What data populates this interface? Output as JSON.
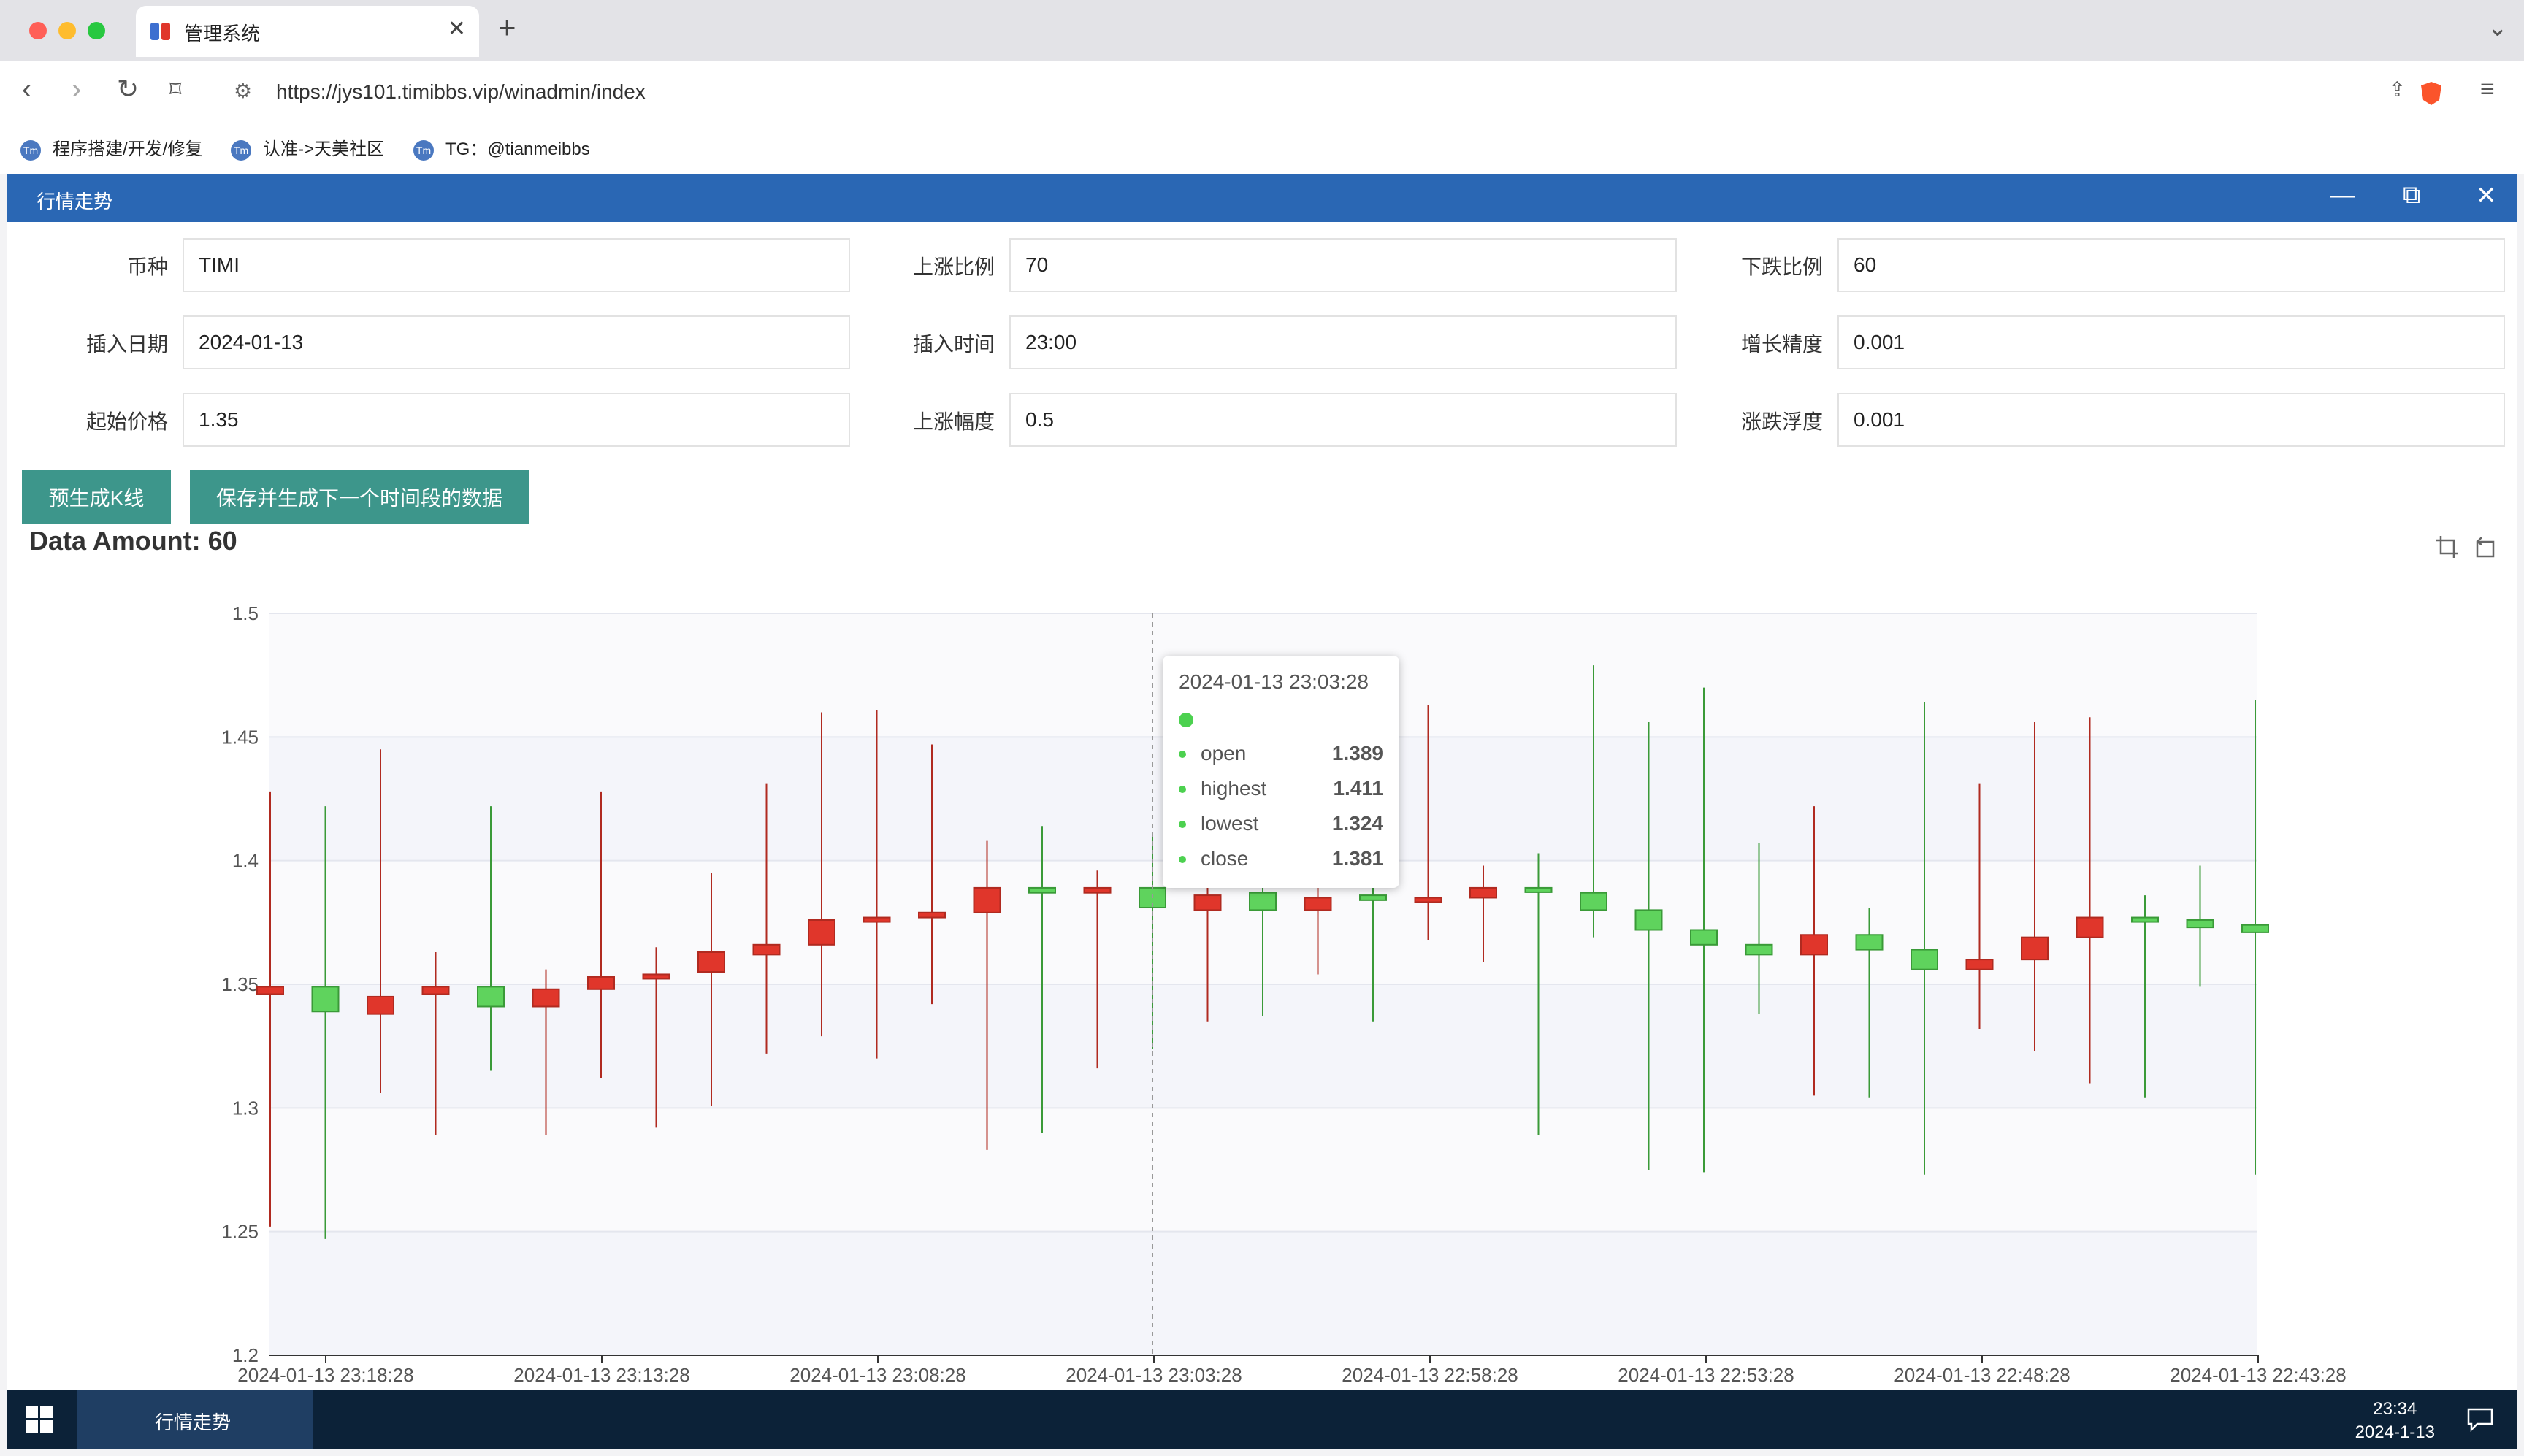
{
  "browser": {
    "tab_title": "管理系统",
    "url": "https://jys101.timibbs.vip/winadmin/index",
    "bookmarks": [
      "程序搭建/开发/修复",
      "认准->天美社区",
      "TG：@tianmeibbs"
    ]
  },
  "panel": {
    "title": "行情走势"
  },
  "form": {
    "fields": [
      {
        "label": "币种",
        "value": "TIMI"
      },
      {
        "label": "上涨比例",
        "value": "70"
      },
      {
        "label": "下跌比例",
        "value": "60"
      },
      {
        "label": "插入日期",
        "value": "2024-01-13"
      },
      {
        "label": "插入时间",
        "value": "23:00"
      },
      {
        "label": "增长精度",
        "value": "0.001"
      },
      {
        "label": "起始价格",
        "value": "1.35"
      },
      {
        "label": "上涨幅度",
        "value": "0.5"
      },
      {
        "label": "涨跌浮度",
        "value": "0.001"
      }
    ],
    "btn_pregen": "预生成K线",
    "btn_save": "保存并生成下一个时间段的数据"
  },
  "data_amount": "Data Amount: 60",
  "tooltip": {
    "title": "2024-01-13 23:03:28",
    "rows": [
      {
        "key": "open",
        "value": "1.389"
      },
      {
        "key": "highest",
        "value": "1.411"
      },
      {
        "key": "lowest",
        "value": "1.324"
      },
      {
        "key": "close",
        "value": "1.381"
      }
    ]
  },
  "taskbar": {
    "task_label": "行情走势",
    "time": "23:34",
    "date": "2024-1-13"
  },
  "colors": {
    "up": "#e0362b",
    "down": "#5fd35d",
    "header": "#2a67b4",
    "button": "#3d968b"
  },
  "chart_data": {
    "type": "candlestick",
    "ylim": [
      1.2,
      1.5
    ],
    "yticks": [
      "1.5",
      "1.45",
      "1.4",
      "1.35",
      "1.3",
      "1.25",
      "1.2"
    ],
    "xticks": [
      "2024-01-13 23:18:28",
      "2024-01-13 23:13:28",
      "2024-01-13 23:08:28",
      "2024-01-13 23:03:28",
      "2024-01-13 22:58:28",
      "2024-01-13 22:53:28",
      "2024-01-13 22:48:28",
      "2024-01-13 22:43:28"
    ],
    "candles": [
      {
        "o": 1.346,
        "c": 1.349,
        "h": 1.428,
        "l": 1.252
      },
      {
        "o": 1.349,
        "c": 1.339,
        "h": 1.422,
        "l": 1.247
      },
      {
        "o": 1.338,
        "c": 1.345,
        "h": 1.445,
        "l": 1.306
      },
      {
        "o": 1.346,
        "c": 1.349,
        "h": 1.363,
        "l": 1.289
      },
      {
        "o": 1.349,
        "c": 1.341,
        "h": 1.422,
        "l": 1.315
      },
      {
        "o": 1.341,
        "c": 1.348,
        "h": 1.356,
        "l": 1.289
      },
      {
        "o": 1.348,
        "c": 1.353,
        "h": 1.428,
        "l": 1.312
      },
      {
        "o": 1.353,
        "c": 1.354,
        "h": 1.365,
        "l": 1.292
      },
      {
        "o": 1.355,
        "c": 1.363,
        "h": 1.395,
        "l": 1.301
      },
      {
        "o": 1.362,
        "c": 1.366,
        "h": 1.431,
        "l": 1.322
      },
      {
        "o": 1.366,
        "c": 1.376,
        "h": 1.46,
        "l": 1.329
      },
      {
        "o": 1.376,
        "c": 1.377,
        "h": 1.461,
        "l": 1.32
      },
      {
        "o": 1.377,
        "c": 1.379,
        "h": 1.447,
        "l": 1.342
      },
      {
        "o": 1.379,
        "c": 1.389,
        "h": 1.408,
        "l": 1.283
      },
      {
        "o": 1.389,
        "c": 1.387,
        "h": 1.414,
        "l": 1.29
      },
      {
        "o": 1.387,
        "c": 1.389,
        "h": 1.396,
        "l": 1.316
      },
      {
        "o": 1.389,
        "c": 1.381,
        "h": 1.411,
        "l": 1.324
      },
      {
        "o": 1.38,
        "c": 1.386,
        "h": 1.396,
        "l": 1.335
      },
      {
        "o": 1.387,
        "c": 1.38,
        "h": 1.398,
        "l": 1.337
      },
      {
        "o": 1.38,
        "c": 1.385,
        "h": 1.398,
        "l": 1.354
      },
      {
        "o": 1.386,
        "c": 1.384,
        "h": 1.39,
        "l": 1.335
      },
      {
        "o": 1.384,
        "c": 1.385,
        "h": 1.463,
        "l": 1.368
      },
      {
        "o": 1.385,
        "c": 1.389,
        "h": 1.398,
        "l": 1.359
      },
      {
        "o": 1.389,
        "c": 1.388,
        "h": 1.403,
        "l": 1.289
      },
      {
        "o": 1.387,
        "c": 1.38,
        "h": 1.479,
        "l": 1.369
      },
      {
        "o": 1.38,
        "c": 1.372,
        "h": 1.456,
        "l": 1.275
      },
      {
        "o": 1.372,
        "c": 1.366,
        "h": 1.47,
        "l": 1.274
      },
      {
        "o": 1.366,
        "c": 1.362,
        "h": 1.407,
        "l": 1.338
      },
      {
        "o": 1.362,
        "c": 1.37,
        "h": 1.422,
        "l": 1.305
      },
      {
        "o": 1.37,
        "c": 1.364,
        "h": 1.381,
        "l": 1.304
      },
      {
        "o": 1.364,
        "c": 1.356,
        "h": 1.464,
        "l": 1.273
      },
      {
        "o": 1.356,
        "c": 1.36,
        "h": 1.431,
        "l": 1.332
      },
      {
        "o": 1.36,
        "c": 1.369,
        "h": 1.456,
        "l": 1.323
      },
      {
        "o": 1.369,
        "c": 1.377,
        "h": 1.458,
        "l": 1.31
      },
      {
        "o": 1.377,
        "c": 1.376,
        "h": 1.386,
        "l": 1.304
      },
      {
        "o": 1.376,
        "c": 1.373,
        "h": 1.398,
        "l": 1.349
      },
      {
        "o": 1.374,
        "c": 1.371,
        "h": 1.465,
        "l": 1.273
      }
    ]
  }
}
